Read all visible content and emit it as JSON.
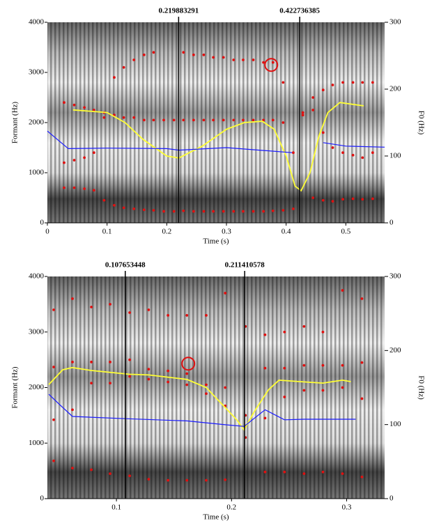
{
  "chart_data": [
    {
      "type": "spectrogram",
      "xlabel": "Time (s)",
      "ylabel": "Formant (Hz)",
      "y2label": "F0 (Hz)",
      "xlim": [
        0,
        0.565
      ],
      "xticks": [
        0,
        0.1,
        0.2,
        0.3,
        0.4,
        0.5
      ],
      "ylim": [
        0,
        4000
      ],
      "yticks": [
        0,
        1000,
        2000,
        3000,
        4000
      ],
      "y2lim": [
        0,
        300
      ],
      "y2ticks": [
        0,
        100,
        200,
        300
      ],
      "cursors": [
        0.219883291,
        0.422736385
      ],
      "highlight": {
        "x": 0.375,
        "y": 3150
      },
      "x": [
        0.028,
        0.045,
        0.062,
        0.078,
        0.095,
        0.112,
        0.128,
        0.145,
        0.162,
        0.178,
        0.195,
        0.212,
        0.228,
        0.245,
        0.262,
        0.278,
        0.295,
        0.312,
        0.328,
        0.345,
        0.362,
        0.378,
        0.395,
        0.412,
        0.428,
        0.445,
        0.462,
        0.478,
        0.495,
        0.512,
        0.528,
        0.545
      ],
      "series": [
        {
          "color": "#e01010",
          "mode": "markers",
          "values": [
            700,
            700,
            680,
            650,
            450,
            350,
            300,
            280,
            260,
            250,
            230,
            230,
            240,
            230,
            230,
            230,
            230,
            230,
            230,
            230,
            230,
            240,
            250,
            280,
            null,
            500,
            450,
            430,
            470,
            480,
            470,
            480
          ]
        },
        {
          "color": "#e01010",
          "mode": "markers",
          "values": [
            1200,
            1250,
            1300,
            1400,
            2100,
            2150,
            2100,
            2100,
            2050,
            2050,
            2050,
            2050,
            2050,
            2050,
            2050,
            2050,
            2050,
            2050,
            2050,
            2050,
            2050,
            2050,
            2000,
            1400,
            2200,
            2250,
            1800,
            1500,
            1400,
            1350,
            1300,
            1400
          ]
        },
        {
          "color": "#e01010",
          "mode": "markers",
          "values": [
            2400,
            2350,
            2300,
            2250,
            2200,
            2900,
            3100,
            3250,
            3350,
            3400,
            null,
            null,
            3400,
            3350,
            3350,
            3300,
            3300,
            3250,
            3250,
            3250,
            3200,
            3200,
            2800,
            null,
            2150,
            2500,
            2650,
            2750,
            2800,
            2800,
            2800,
            2800
          ]
        },
        {
          "color": "#ffff33",
          "mode": "line",
          "axis": "y2",
          "x": [
            0.043,
            0.1,
            0.13,
            0.16,
            0.2,
            0.22,
            0.26,
            0.3,
            0.33,
            0.36,
            0.38,
            0.4,
            0.415,
            0.425,
            0.44,
            0.455,
            0.47,
            0.49,
            0.53
          ],
          "values": [
            169,
            165,
            150,
            125,
            100,
            97,
            115,
            140,
            150,
            152,
            140,
            100,
            55,
            48,
            75,
            130,
            165,
            180,
            175
          ]
        },
        {
          "color": "#1a1aff",
          "mode": "line",
          "x": [
            0,
            0.035,
            0.1,
            0.2,
            0.22,
            0.3,
            0.41,
            0.43,
            0.462,
            0.5,
            0.565
          ],
          "values": [
            1830,
            1480,
            1490,
            1480,
            1450,
            1500,
            1400,
            null,
            1600,
            1530,
            1510
          ]
        }
      ]
    },
    {
      "type": "spectrogram",
      "xlabel": "Time (s)",
      "ylabel": "Formant (Hz)",
      "y2label": "F0 (Hz)",
      "xlim": [
        0.04,
        0.333
      ],
      "xticks": [
        0.1,
        0.2,
        0.3
      ],
      "ylim": [
        0,
        4000
      ],
      "yticks": [
        0,
        1000,
        2000,
        3000,
        4000
      ],
      "y2lim": [
        0,
        300
      ],
      "y2ticks": [
        0,
        100,
        200,
        300
      ],
      "cursors": [
        0.107653448,
        0.211410578
      ],
      "highlight": {
        "x": 0.1624,
        "y": 2430
      },
      "x": [
        0.0455,
        0.0618,
        0.0782,
        0.0945,
        0.1115,
        0.128,
        0.1448,
        0.1612,
        0.178,
        0.1945,
        0.2121,
        0.2291,
        0.246,
        0.263,
        0.2794,
        0.2964,
        0.3133
      ],
      "series": [
        {
          "color": "#e01010",
          "mode": "markers",
          "values": [
            680,
            550,
            520,
            450,
            410,
            350,
            330,
            330,
            330,
            340,
            null,
            480,
            480,
            450,
            480,
            450,
            390
          ]
        },
        {
          "color": "#e01010",
          "mode": "markers",
          "values": [
            1420,
            1600,
            2080,
            2080,
            2200,
            2150,
            2100,
            2050,
            1890,
            1670,
            1100,
            1450,
            1830,
            1950,
            1950,
            2000,
            1800
          ]
        },
        {
          "color": "#e01010",
          "mode": "markers",
          "values": [
            2370,
            2460,
            2460,
            2460,
            2500,
            2330,
            2300,
            2250,
            2050,
            2000,
            1500,
            2350,
            2350,
            2400,
            2400,
            2400,
            2450
          ]
        },
        {
          "color": "#e01010",
          "mode": "markers",
          "values": [
            3400,
            3600,
            3450,
            3500,
            3350,
            3400,
            3300,
            3300,
            3300,
            3700,
            3100,
            2950,
            3000,
            3100,
            3000,
            3750,
            3600
          ]
        },
        {
          "color": "#ffff33",
          "mode": "line",
          "axis": "y2",
          "x": [
            0.0412,
            0.0533,
            0.0618,
            0.0782,
            0.1109,
            0.128,
            0.1448,
            0.1612,
            0.178,
            0.1945,
            0.2048,
            0.2109,
            0.22,
            0.2321,
            0.2412,
            0.2594,
            0.2794,
            0.2964,
            0.3036
          ],
          "values": [
            154,
            174,
            177,
            173,
            168,
            167,
            164,
            161,
            150,
            123,
            106,
            93,
            118,
            147,
            160,
            158,
            156,
            160,
            158
          ]
        },
        {
          "color": "#1a1aff",
          "mode": "line",
          "x": [
            0.0412,
            0.0503,
            0.0618,
            0.1079,
            0.1612,
            0.1945,
            0.2109,
            0.2291,
            0.246,
            0.263,
            0.3079
          ],
          "values": [
            1880,
            1700,
            1480,
            1440,
            1400,
            1330,
            1300,
            1600,
            1420,
            1430,
            1430
          ]
        }
      ]
    }
  ]
}
